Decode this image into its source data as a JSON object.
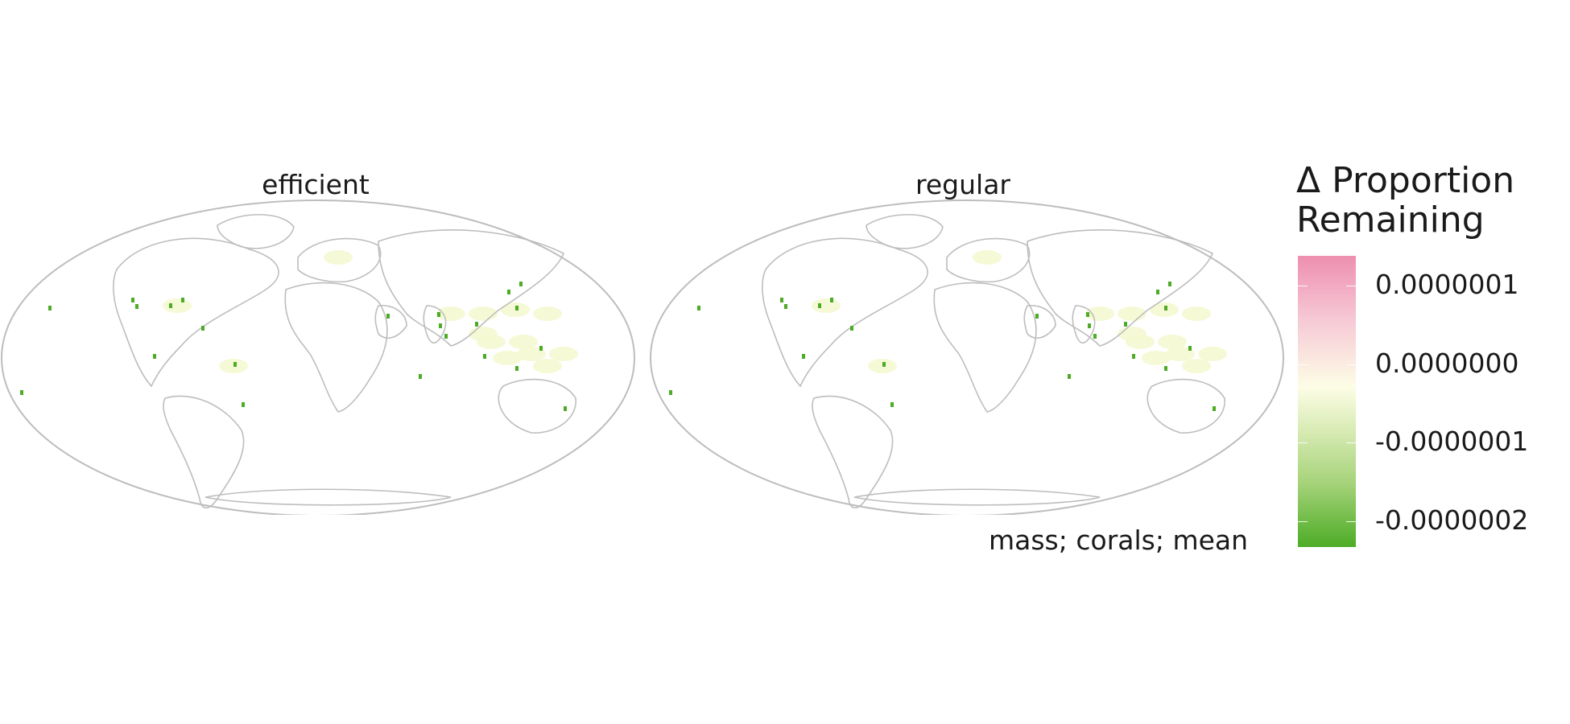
{
  "panels": [
    {
      "title": "efficient"
    },
    {
      "title": "regular"
    }
  ],
  "legend": {
    "title_line1": "Δ Proportion",
    "title_line2": "Remaining",
    "ticks": [
      "0.0000001",
      "0.0000000",
      "-0.0000001",
      "-0.0000002"
    ]
  },
  "caption": "mass; corals; mean",
  "colors": {
    "high": "#ee8fb0",
    "mid": "#fdfde6",
    "low": "#4dac26",
    "outline": "#bdbdbd"
  }
}
